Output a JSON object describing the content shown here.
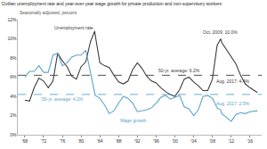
{
  "chart_data": {
    "type": "line",
    "title": "Civilian unemployment rate and year-over-year wage growth for private production and non-supervisory workers",
    "subtitle": "Seasonally adjusted, percent",
    "x": [
      1968,
      1969,
      1970,
      1971,
      1972,
      1973,
      1974,
      1975,
      1976,
      1977,
      1978,
      1979,
      1980,
      1981,
      1982,
      1982.9,
      1983,
      1984,
      1985,
      1986,
      1987,
      1988,
      1989,
      1990,
      1991,
      1992,
      1993,
      1994,
      1995,
      1996,
      1997,
      1998,
      1999,
      2000,
      2001,
      2002,
      2003,
      2004,
      2005,
      2006,
      2007,
      2008,
      2009,
      2009.75,
      2010,
      2011,
      2012,
      2013,
      2014,
      2015,
      2016,
      2017.6
    ],
    "series": [
      {
        "name": "Unemployment rate",
        "color": "#3c3c3c",
        "values": [
          3.6,
          3.5,
          4.9,
          5.9,
          5.6,
          4.9,
          5.6,
          8.5,
          7.7,
          7.1,
          6.1,
          5.8,
          7.1,
          7.6,
          9.7,
          10.8,
          10.4,
          7.5,
          7.2,
          7.0,
          6.2,
          5.5,
          5.3,
          5.6,
          6.8,
          7.5,
          6.9,
          6.1,
          5.6,
          5.4,
          4.9,
          4.5,
          4.2,
          4.0,
          4.7,
          5.8,
          6.0,
          5.5,
          5.1,
          4.6,
          4.6,
          5.8,
          9.3,
          10.0,
          9.6,
          8.9,
          8.1,
          7.4,
          6.2,
          5.3,
          4.9,
          4.4
        ]
      },
      {
        "name": "Wage growth",
        "color": "#5ba3c9",
        "values": [
          6.0,
          6.6,
          6.6,
          7.2,
          6.5,
          6.5,
          8.3,
          8.5,
          7.2,
          7.5,
          8.1,
          8.3,
          8.3,
          8.8,
          6.5,
          4.5,
          4.1,
          3.8,
          3.1,
          2.2,
          2.5,
          3.3,
          4.0,
          3.8,
          3.3,
          2.4,
          2.5,
          2.6,
          2.8,
          3.3,
          3.9,
          4.1,
          3.7,
          3.9,
          4.1,
          2.9,
          2.7,
          2.0,
          2.6,
          4.0,
          4.1,
          3.8,
          2.8,
          2.6,
          2.2,
          1.8,
          1.4,
          2.1,
          2.3,
          2.2,
          2.4,
          2.5
        ]
      }
    ],
    "reference_lines": [
      {
        "value": 6.2,
        "color": "#3c3c3c",
        "line_style": "dashed"
      },
      {
        "value": 4.2,
        "color": "#5ba3c9",
        "line_style": "dashed"
      }
    ],
    "annotations": [
      {
        "text": "Unemployment rate",
        "x": 1978.5,
        "y": 11.2,
        "color": "#3c3c3c"
      },
      {
        "text": "Oct. 2009: 10.0%",
        "x": 2009.75,
        "y": 10.7,
        "color": "#3c3c3c"
      },
      {
        "text": "50-yr. average: 6.2%",
        "x": 2001,
        "y": 6.7,
        "color": "#3c3c3c"
      },
      {
        "text": "Aug. 2017: 4.4%",
        "x": 2012.5,
        "y": 5.6,
        "color": "#3c3c3c"
      },
      {
        "text": "50-yr. average: 4.2%",
        "x": 1976,
        "y": 3.7,
        "color": "#5ba3c9"
      },
      {
        "text": "Aug. 2017: 2.5%",
        "x": 2012.5,
        "y": 3.3,
        "color": "#5ba3c9"
      },
      {
        "text": "Wage growth",
        "x": 1991,
        "y": 1.5,
        "color": "#5ba3c9"
      }
    ],
    "xlim": [
      1966.5,
      2018.5
    ],
    "xticks": [
      {
        "value": 1968,
        "label": "'68"
      },
      {
        "value": 1972,
        "label": "'72"
      },
      {
        "value": 1976,
        "label": "'76"
      },
      {
        "value": 1980,
        "label": "'80"
      },
      {
        "value": 1984,
        "label": "'84"
      },
      {
        "value": 1988,
        "label": "'88"
      },
      {
        "value": 1992,
        "label": "'92"
      },
      {
        "value": 1996,
        "label": "'96"
      },
      {
        "value": 2000,
        "label": "'00"
      },
      {
        "value": 2004,
        "label": "'04"
      },
      {
        "value": 2008,
        "label": "'08"
      },
      {
        "value": 2012,
        "label": "'12"
      },
      {
        "value": 2016,
        "label": "'16"
      }
    ],
    "ylim": [
      0,
      12
    ],
    "yticks": [
      {
        "value": 0,
        "label": "0%"
      },
      {
        "value": 2,
        "label": "2%"
      },
      {
        "value": 4,
        "label": "4%"
      },
      {
        "value": 6,
        "label": "6%"
      },
      {
        "value": 8,
        "label": "8%"
      },
      {
        "value": 10,
        "label": "10%"
      },
      {
        "value": 12,
        "label": "12%"
      }
    ],
    "grid": false,
    "legend": "none"
  }
}
